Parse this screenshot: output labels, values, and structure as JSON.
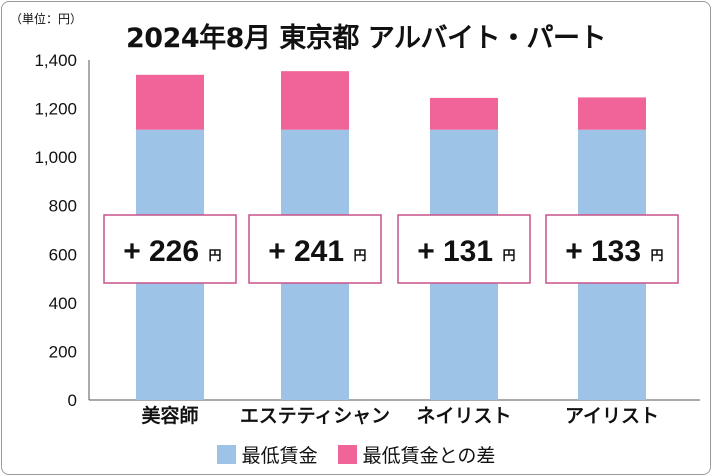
{
  "unit_label": "（単位：円）",
  "chart_data": {
    "type": "bar",
    "stacked": true,
    "title": "2024年8月 東京都 アルバイト・パート",
    "categories": [
      "美容師",
      "エステティシャン",
      "ネイリスト",
      "アイリスト"
    ],
    "series": [
      {
        "name": "最低賃金",
        "values": [
          1113,
          1113,
          1113,
          1113
        ],
        "color": "#9dc3e6"
      },
      {
        "name": "最低賃金との差",
        "values": [
          226,
          241,
          131,
          133
        ],
        "color": "#f0649a"
      }
    ],
    "annotations": [
      {
        "sign": "+",
        "value": "226",
        "unit": "円"
      },
      {
        "sign": "+",
        "value": "241",
        "unit": "円"
      },
      {
        "sign": "+",
        "value": "131",
        "unit": "円"
      },
      {
        "sign": "+",
        "value": "133",
        "unit": "円"
      }
    ],
    "yticks": [
      "0",
      "200",
      "400",
      "600",
      "800",
      "1,000",
      "1,200",
      "1,400"
    ],
    "ylim": [
      0,
      1400
    ],
    "grid": false,
    "legend_position": "bottom"
  }
}
